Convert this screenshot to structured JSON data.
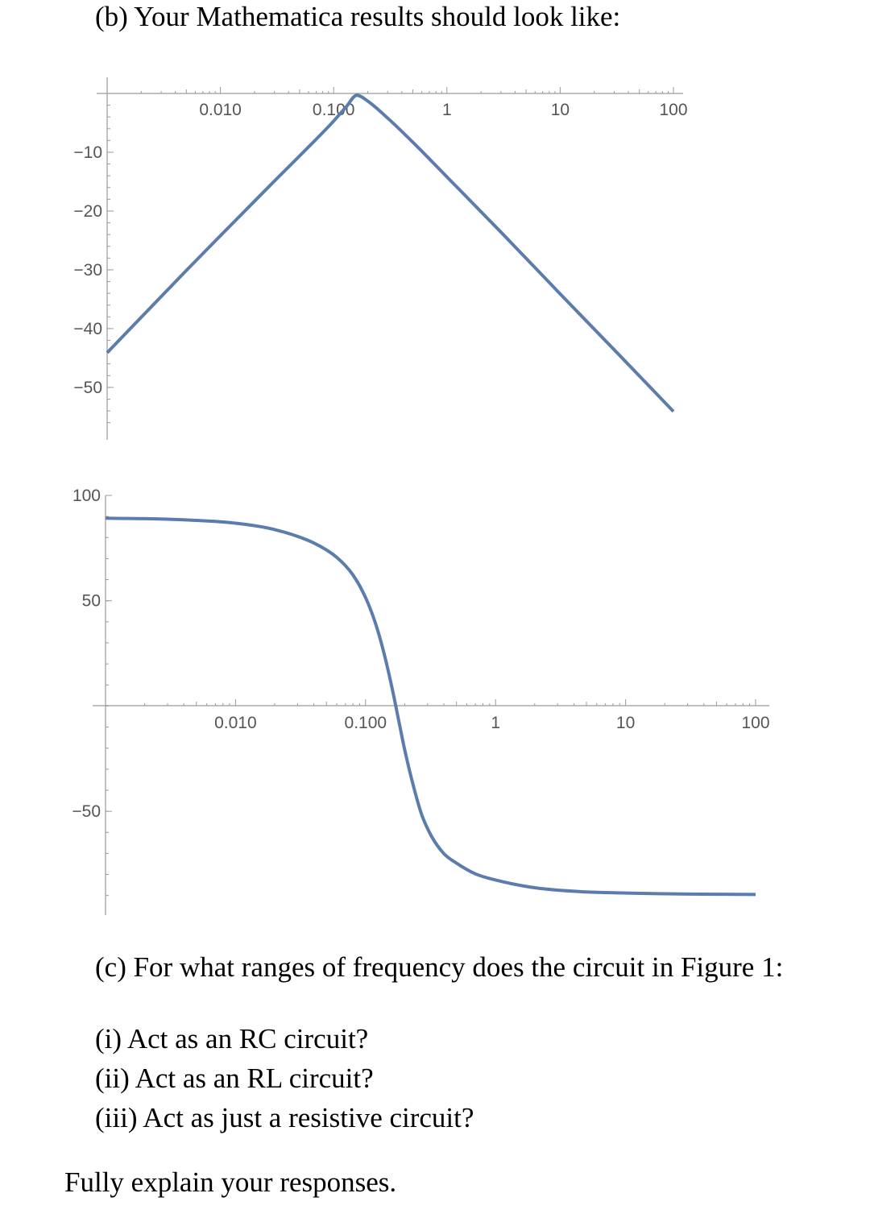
{
  "document": {
    "part_b_heading": "(b) Your Mathematica results should look like:",
    "part_c_question": "(c) For what ranges of frequency does the circuit in Figure 1:",
    "sub_questions": [
      "(i) Act as an RC circuit?",
      "(ii) Act as an RL circuit?",
      "(iii) Act as just a resistive circuit?"
    ],
    "closing": "Fully explain your responses."
  },
  "chart_data": [
    {
      "type": "line",
      "x_scale": "log",
      "xlim": [
        0.001,
        100
      ],
      "ylim": [
        -57,
        0
      ],
      "x_ticks": [
        0.01,
        0.1,
        1,
        10,
        100
      ],
      "x_tick_labels": [
        "0.010",
        "0.100",
        "1",
        "10",
        "100"
      ],
      "y_ticks": [
        -10,
        -20,
        -30,
        -40,
        -50
      ],
      "y_tick_labels": [
        "−10",
        "−20",
        "−30",
        "−40",
        "−50"
      ],
      "series": [
        {
          "color": "#5b7cad",
          "x": [
            0.001,
            0.005,
            0.01,
            0.03,
            0.06,
            0.1,
            0.13,
            0.16,
            0.2,
            0.3,
            0.5,
            1,
            3,
            10,
            30,
            100
          ],
          "y": [
            -44.1,
            -30.1,
            -24.2,
            -14.9,
            -9.1,
            -4.7,
            -2.2,
            -0.3,
            -1.3,
            -4.2,
            -8.3,
            -14.2,
            -23.6,
            -34.1,
            -43.6,
            -54.1
          ]
        }
      ],
      "grid": false,
      "legend": "none"
    },
    {
      "type": "line",
      "x_scale": "log",
      "xlim": [
        0.001,
        100
      ],
      "ylim": [
        -97,
        100
      ],
      "x_ticks": [
        0.01,
        0.1,
        1,
        10,
        100
      ],
      "x_tick_labels": [
        "0.010",
        "0.100",
        "1",
        "10",
        "100"
      ],
      "y_ticks": [
        100,
        50,
        -50
      ],
      "y_tick_labels": [
        "100",
        "50",
        "−50"
      ],
      "series": [
        {
          "color": "#5b7cad",
          "x": [
            0.001,
            0.003,
            0.01,
            0.02,
            0.04,
            0.06,
            0.08,
            0.1,
            0.12,
            0.14,
            0.16,
            0.18,
            0.2,
            0.23,
            0.27,
            0.32,
            0.4,
            0.5,
            0.7,
            1,
            2,
            5,
            10,
            30,
            100
          ],
          "y": [
            89.2,
            88.7,
            86.8,
            83.8,
            77.4,
            70.6,
            62.2,
            51.5,
            38.7,
            24.0,
            8.5,
            -7.0,
            -20.8,
            -36.5,
            -51.5,
            -61.6,
            -70.1,
            -74.6,
            -79.7,
            -82.6,
            -86.3,
            -88.3,
            -88.8,
            -89.3,
            -89.5
          ]
        }
      ],
      "grid": false,
      "legend": "none"
    }
  ]
}
